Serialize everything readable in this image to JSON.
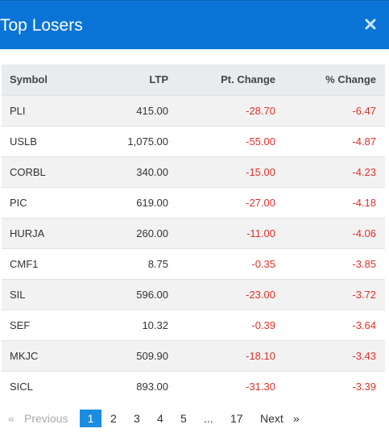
{
  "modal": {
    "title": "Top Losers",
    "close_icon": "close-icon"
  },
  "table": {
    "headers": {
      "symbol": "Symbol",
      "ltp": "LTP",
      "pt_change": "Pt. Change",
      "pct_change": "% Change"
    },
    "rows": [
      {
        "symbol": "PLI",
        "ltp": "415.00",
        "pt_change": "-28.70",
        "pct_change": "-6.47"
      },
      {
        "symbol": "USLB",
        "ltp": "1,075.00",
        "pt_change": "-55.00",
        "pct_change": "-4.87"
      },
      {
        "symbol": "CORBL",
        "ltp": "340.00",
        "pt_change": "-15.00",
        "pct_change": "-4.23"
      },
      {
        "symbol": "PIC",
        "ltp": "619.00",
        "pt_change": "-27.00",
        "pct_change": "-4.18"
      },
      {
        "symbol": "HURJA",
        "ltp": "260.00",
        "pt_change": "-11.00",
        "pct_change": "-4.06"
      },
      {
        "symbol": "CMF1",
        "ltp": "8.75",
        "pt_change": "-0.35",
        "pct_change": "-3.85"
      },
      {
        "symbol": "SIL",
        "ltp": "596.00",
        "pt_change": "-23.00",
        "pct_change": "-3.72"
      },
      {
        "symbol": "SEF",
        "ltp": "10.32",
        "pt_change": "-0.39",
        "pct_change": "-3.64"
      },
      {
        "symbol": "MKJC",
        "ltp": "509.90",
        "pt_change": "-18.10",
        "pct_change": "-3.43"
      },
      {
        "symbol": "SICL",
        "ltp": "893.00",
        "pt_change": "-31.30",
        "pct_change": "-3.39"
      }
    ]
  },
  "pagination": {
    "first": "«",
    "previous": "Previous",
    "pages": [
      "1",
      "2",
      "3",
      "4",
      "5"
    ],
    "ellipsis": "...",
    "last_page": "17",
    "next": "Next",
    "last": "»",
    "active_page": "1"
  },
  "colors": {
    "header_bg": "#0a74d6",
    "negative": "#e0302a",
    "active_page_bg": "#1a8de0",
    "striped_row": "#f2f2f2"
  }
}
